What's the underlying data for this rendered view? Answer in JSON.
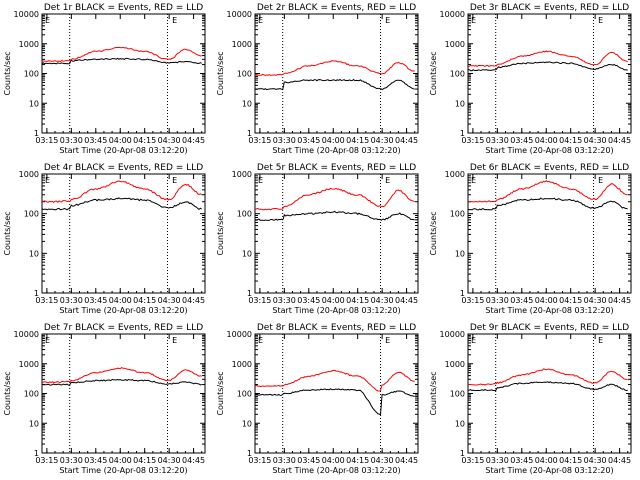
{
  "colors": {
    "events": "#000000",
    "lld": "#ff0000",
    "axis": "#000000"
  },
  "chart_data": [
    {
      "type": "line",
      "title": "Det 1r BLACK = Events, RED = LLD",
      "xlabel": "Start Time (20-Apr-08 03:12:20)",
      "ylabel": "Counts/sec",
      "ylim": [
        1,
        10000
      ],
      "yticks": [
        "1",
        "10",
        "100",
        "1000",
        "10000"
      ],
      "xticks": [
        "03:15",
        "03:30",
        "03:45",
        "04:00",
        "04:15",
        "04:30",
        "04:45"
      ],
      "series": [
        {
          "name": "Events",
          "x": [
            "03:12",
            "03:20",
            "03:29",
            "03:30",
            "03:45",
            "04:00",
            "04:15",
            "04:29",
            "04:30",
            "04:40",
            "04:50"
          ],
          "y": [
            220,
            220,
            220,
            270,
            300,
            310,
            300,
            230,
            230,
            250,
            220
          ]
        },
        {
          "name": "LLD",
          "x": [
            "03:12",
            "03:20",
            "03:29",
            "03:30",
            "03:45",
            "04:00",
            "04:15",
            "04:29",
            "04:30",
            "04:40",
            "04:50"
          ],
          "y": [
            260,
            260,
            270,
            300,
            550,
            760,
            550,
            300,
            300,
            650,
            400
          ]
        }
      ],
      "marker": "E"
    },
    {
      "type": "line",
      "title": "Det 2r BLACK = Events, RED = LLD",
      "xlabel": "Start Time (20-Apr-08 03:12:20)",
      "ylabel": "Counts/sec",
      "ylim": [
        1,
        10000
      ],
      "yticks": [
        "1",
        "10",
        "100",
        "1000",
        "10000"
      ],
      "xticks": [
        "03:15",
        "03:30",
        "03:45",
        "04:00",
        "04:15",
        "04:30",
        "04:45"
      ],
      "series": [
        {
          "name": "Events",
          "x": [
            "03:12",
            "03:20",
            "03:29",
            "03:30",
            "03:45",
            "04:00",
            "04:15",
            "04:29",
            "04:30",
            "04:40",
            "04:50"
          ],
          "y": [
            30,
            30,
            30,
            50,
            60,
            60,
            60,
            30,
            30,
            60,
            30
          ]
        },
        {
          "name": "LLD",
          "x": [
            "03:12",
            "03:20",
            "03:29",
            "03:30",
            "03:45",
            "04:00",
            "04:15",
            "04:29",
            "04:30",
            "04:40",
            "04:50"
          ],
          "y": [
            90,
            90,
            90,
            100,
            180,
            260,
            180,
            100,
            100,
            230,
            120
          ]
        }
      ],
      "marker": "E"
    },
    {
      "type": "line",
      "title": "Det 3r BLACK = Events, RED = LLD",
      "xlabel": "Start Time (20-Apr-08 03:12:20)",
      "ylabel": "Counts/sec",
      "ylim": [
        1,
        10000
      ],
      "yticks": [
        "1",
        "10",
        "100",
        "1000",
        "10000"
      ],
      "xticks": [
        "03:15",
        "03:30",
        "03:45",
        "04:00",
        "04:15",
        "04:30",
        "04:45"
      ],
      "series": [
        {
          "name": "Events",
          "x": [
            "03:12",
            "03:20",
            "03:29",
            "03:30",
            "03:45",
            "04:00",
            "04:15",
            "04:29",
            "04:30",
            "04:40",
            "04:50"
          ],
          "y": [
            130,
            130,
            130,
            160,
            220,
            240,
            220,
            140,
            140,
            200,
            130
          ]
        },
        {
          "name": "LLD",
          "x": [
            "03:12",
            "03:20",
            "03:29",
            "03:30",
            "03:45",
            "04:00",
            "04:15",
            "04:29",
            "04:30",
            "04:40",
            "04:50"
          ],
          "y": [
            180,
            180,
            180,
            200,
            380,
            550,
            380,
            200,
            200,
            500,
            250
          ]
        }
      ],
      "marker": "E"
    },
    {
      "type": "line",
      "title": "Det 4r BLACK = Events, RED = LLD",
      "xlabel": "Start Time (20-Apr-08 03:12:20)",
      "ylabel": "Counts/sec",
      "ylim": [
        1,
        1000
      ],
      "yticks": [
        "1",
        "10",
        "100",
        "1000"
      ],
      "xticks": [
        "03:15",
        "03:30",
        "03:45",
        "04:00",
        "04:15",
        "04:30",
        "04:45"
      ],
      "series": [
        {
          "name": "Events",
          "x": [
            "03:12",
            "03:20",
            "03:29",
            "03:30",
            "03:45",
            "04:00",
            "04:15",
            "04:29",
            "04:30",
            "04:40",
            "04:50"
          ],
          "y": [
            130,
            130,
            130,
            160,
            220,
            240,
            220,
            140,
            140,
            200,
            130
          ]
        },
        {
          "name": "LLD",
          "x": [
            "03:12",
            "03:20",
            "03:29",
            "03:30",
            "03:45",
            "04:00",
            "04:15",
            "04:29",
            "04:30",
            "04:40",
            "04:50"
          ],
          "y": [
            200,
            200,
            210,
            230,
            420,
            650,
            420,
            230,
            230,
            550,
            300
          ]
        }
      ],
      "marker": "E"
    },
    {
      "type": "line",
      "title": "Det 5r BLACK = Events, RED = LLD",
      "xlabel": "Start Time (20-Apr-08 03:12:20)",
      "ylabel": "Counts/sec",
      "ylim": [
        1,
        1000
      ],
      "yticks": [
        "1",
        "10",
        "100",
        "1000"
      ],
      "xticks": [
        "03:15",
        "03:30",
        "03:45",
        "04:00",
        "04:15",
        "04:30",
        "04:45"
      ],
      "series": [
        {
          "name": "Events",
          "x": [
            "03:12",
            "03:20",
            "03:29",
            "03:30",
            "03:45",
            "04:00",
            "04:15",
            "04:29",
            "04:30",
            "04:40",
            "04:50"
          ],
          "y": [
            70,
            70,
            70,
            90,
            100,
            110,
            100,
            70,
            70,
            100,
            70
          ]
        },
        {
          "name": "LLD",
          "x": [
            "03:12",
            "03:20",
            "03:29",
            "03:30",
            "03:45",
            "04:00",
            "04:15",
            "04:29",
            "04:30",
            "04:40",
            "04:50"
          ],
          "y": [
            130,
            130,
            130,
            150,
            300,
            430,
            300,
            150,
            150,
            380,
            200
          ]
        }
      ],
      "marker": "E"
    },
    {
      "type": "line",
      "title": "Det 6r BLACK = Events, RED = LLD",
      "xlabel": "Start Time (20-Apr-08 03:12:20)",
      "ylabel": "Counts/sec",
      "ylim": [
        1,
        1000
      ],
      "yticks": [
        "1",
        "10",
        "100",
        "1000"
      ],
      "xticks": [
        "03:15",
        "03:30",
        "03:45",
        "04:00",
        "04:15",
        "04:30",
        "04:45"
      ],
      "series": [
        {
          "name": "Events",
          "x": [
            "03:12",
            "03:20",
            "03:29",
            "03:30",
            "03:45",
            "04:00",
            "04:15",
            "04:29",
            "04:30",
            "04:40",
            "04:50"
          ],
          "y": [
            130,
            130,
            130,
            160,
            220,
            240,
            220,
            140,
            140,
            200,
            130
          ]
        },
        {
          "name": "LLD",
          "x": [
            "03:12",
            "03:20",
            "03:29",
            "03:30",
            "03:45",
            "04:00",
            "04:15",
            "04:29",
            "04:30",
            "04:40",
            "04:50"
          ],
          "y": [
            200,
            200,
            210,
            230,
            420,
            650,
            420,
            230,
            230,
            550,
            300
          ]
        }
      ],
      "marker": "E"
    },
    {
      "type": "line",
      "title": "Det 7r BLACK = Events, RED = LLD",
      "xlabel": "Start Time (20-Apr-08 03:12:20)",
      "ylabel": "Counts/sec",
      "ylim": [
        1,
        10000
      ],
      "yticks": [
        "1",
        "10",
        "100",
        "1000",
        "10000"
      ],
      "xticks": [
        "03:15",
        "03:30",
        "03:45",
        "04:00",
        "04:15",
        "04:30",
        "04:45"
      ],
      "series": [
        {
          "name": "Events",
          "x": [
            "03:12",
            "03:20",
            "03:29",
            "03:30",
            "03:45",
            "04:00",
            "04:15",
            "04:29",
            "04:30",
            "04:40",
            "04:50"
          ],
          "y": [
            200,
            200,
            200,
            230,
            270,
            290,
            270,
            210,
            210,
            240,
            200
          ]
        },
        {
          "name": "LLD",
          "x": [
            "03:12",
            "03:20",
            "03:29",
            "03:30",
            "03:45",
            "04:00",
            "04:15",
            "04:29",
            "04:30",
            "04:40",
            "04:50"
          ],
          "y": [
            240,
            240,
            250,
            270,
            500,
            720,
            500,
            280,
            280,
            620,
            380
          ]
        }
      ],
      "marker": "E"
    },
    {
      "type": "line",
      "title": "Det 8r BLACK = Events, RED = LLD",
      "xlabel": "Start Time (20-Apr-08 03:12:20)",
      "ylabel": "Counts/sec",
      "ylim": [
        1,
        10000
      ],
      "yticks": [
        "1",
        "10",
        "100",
        "1000",
        "10000"
      ],
      "xticks": [
        "03:15",
        "03:30",
        "03:45",
        "04:00",
        "04:15",
        "04:30",
        "04:45"
      ],
      "series": [
        {
          "name": "Events",
          "x": [
            "03:12",
            "03:20",
            "03:29",
            "03:30",
            "03:45",
            "04:00",
            "04:15",
            "04:29",
            "04:30",
            "04:40",
            "04:50"
          ],
          "y": [
            90,
            90,
            90,
            100,
            130,
            140,
            130,
            20,
            90,
            120,
            80
          ]
        },
        {
          "name": "LLD",
          "x": [
            "03:12",
            "03:20",
            "03:29",
            "03:30",
            "03:45",
            "04:00",
            "04:15",
            "04:29",
            "04:30",
            "04:40",
            "04:50"
          ],
          "y": [
            180,
            180,
            180,
            200,
            380,
            580,
            380,
            120,
            200,
            520,
            260
          ]
        }
      ],
      "marker": "E"
    },
    {
      "type": "line",
      "title": "Det 9r BLACK = Events, RED = LLD",
      "xlabel": "Start Time (20-Apr-08 03:12:20)",
      "ylabel": "Counts/sec",
      "ylim": [
        1,
        10000
      ],
      "yticks": [
        "1",
        "10",
        "100",
        "1000",
        "10000"
      ],
      "xticks": [
        "03:15",
        "03:30",
        "03:45",
        "04:00",
        "04:15",
        "04:30",
        "04:45"
      ],
      "series": [
        {
          "name": "Events",
          "x": [
            "03:12",
            "03:20",
            "03:29",
            "03:30",
            "03:45",
            "04:00",
            "04:15",
            "04:29",
            "04:30",
            "04:40",
            "04:50"
          ],
          "y": [
            130,
            130,
            130,
            160,
            220,
            240,
            220,
            140,
            140,
            200,
            130
          ]
        },
        {
          "name": "LLD",
          "x": [
            "03:12",
            "03:20",
            "03:29",
            "03:30",
            "03:45",
            "04:00",
            "04:15",
            "04:29",
            "04:30",
            "04:40",
            "04:50"
          ],
          "y": [
            200,
            200,
            210,
            230,
            420,
            650,
            420,
            230,
            230,
            550,
            300
          ]
        }
      ],
      "marker": "E"
    }
  ]
}
